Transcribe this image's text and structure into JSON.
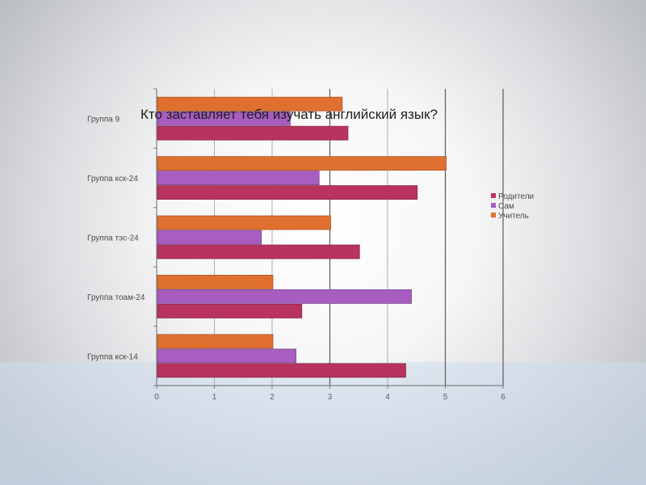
{
  "chart_data": {
    "type": "bar",
    "orientation": "horizontal",
    "title": "Кто заставляет тебя изучать английский язык?",
    "categories": [
      "Группа кск-14",
      "Группа тоам-24",
      "Группа тэс-24",
      "Группа кск-24",
      "Группа 9"
    ],
    "series": [
      {
        "name": "Родители",
        "color": "#b8335e",
        "values": [
          4.3,
          2.5,
          3.5,
          4.5,
          3.3
        ]
      },
      {
        "name": "Сам",
        "color": "#a75ec0",
        "values": [
          2.4,
          4.4,
          1.8,
          2.8,
          2.3
        ]
      },
      {
        "name": "Учитель",
        "color": "#e0702f",
        "values": [
          2.0,
          2.0,
          3.0,
          5.0,
          3.2
        ]
      }
    ],
    "xlim": [
      0,
      6
    ],
    "xticks": [
      "0",
      "1",
      "2",
      "3",
      "4",
      "5",
      "6"
    ],
    "grid": true,
    "legend": "right"
  }
}
